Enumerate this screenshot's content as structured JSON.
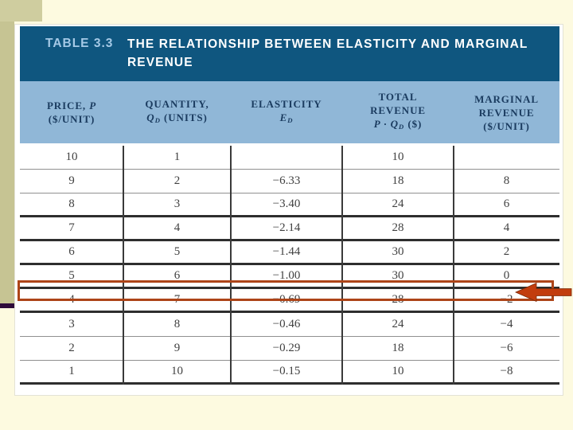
{
  "table": {
    "label": "TABLE 3.3",
    "title_line1": "THE RELATIONSHIP BETWEEN ELASTICITY AND MARGINAL",
    "title_line2": "REVENUE",
    "headers": {
      "price_main": "PRICE, ",
      "price_var": "P",
      "price_unit": "($/UNIT)",
      "qty_main": "QUANTITY,",
      "qty_var": "Q",
      "qty_sub": "D",
      "qty_unit": " (UNITS)",
      "elasticity_main": "ELASTICITY",
      "elasticity_var": "E",
      "elasticity_sub": "D",
      "tr_line1": "TOTAL",
      "tr_line2": "REVENUE",
      "tr_formula_pre": "P · Q",
      "tr_formula_sub": "D",
      "tr_formula_post": " ($)",
      "mr_line1": "MARGINAL",
      "mr_line2": "REVENUE",
      "mr_line3": "($/UNIT)"
    },
    "rows": [
      {
        "price": "10",
        "qty": "1",
        "elasticity": "",
        "tr": "10",
        "mr": "",
        "rule": "thin"
      },
      {
        "price": "9",
        "qty": "2",
        "elasticity": "−6.33",
        "tr": "18",
        "mr": "8",
        "rule": "thin"
      },
      {
        "price": "8",
        "qty": "3",
        "elasticity": "−3.40",
        "tr": "24",
        "mr": "6",
        "rule": "heavy"
      },
      {
        "price": "7",
        "qty": "4",
        "elasticity": "−2.14",
        "tr": "28",
        "mr": "4",
        "rule": "heavy"
      },
      {
        "price": "6",
        "qty": "5",
        "elasticity": "−1.44",
        "tr": "30",
        "mr": "2",
        "rule": "heavy"
      },
      {
        "price": "5",
        "qty": "6",
        "elasticity": "−1.00",
        "tr": "30",
        "mr": "0",
        "rule": "heavy"
      },
      {
        "price": "4",
        "qty": "7",
        "elasticity": "−0.69",
        "tr": "28",
        "mr": "−2",
        "rule": "heavy"
      },
      {
        "price": "3",
        "qty": "8",
        "elasticity": "−0.46",
        "tr": "24",
        "mr": "−4",
        "rule": "thin"
      },
      {
        "price": "2",
        "qty": "9",
        "elasticity": "−0.29",
        "tr": "18",
        "mr": "−6",
        "rule": "thin"
      },
      {
        "price": "1",
        "qty": "10",
        "elasticity": "−0.15",
        "tr": "10",
        "mr": "−8",
        "rule": "heavy"
      }
    ]
  },
  "annotation": {
    "box_color": "#AD4418",
    "arrow_color": "#C23D0E",
    "highlighted_rows": [
      "5",
      "4"
    ]
  },
  "colors": {
    "slide_background": "#FDFAE0",
    "accent_band": "#C6C493",
    "accent_corner": "#CFCD9F",
    "accent_rule": "#2E0B3A",
    "title_bar": "#0F567F",
    "title_label_text": "#A5C9E6",
    "header_band": "#90B7D7",
    "header_text": "#1B3C60",
    "data_text": "#414141"
  },
  "chart_data": {
    "type": "table",
    "title": "TABLE 3.3 THE RELATIONSHIP BETWEEN ELASTICITY AND MARGINAL REVENUE",
    "columns": [
      "Price, P ($/unit)",
      "Quantity, QD (units)",
      "Elasticity ED",
      "Total Revenue P·QD ($)",
      "Marginal Revenue ($/unit)"
    ],
    "rows": [
      [
        10,
        1,
        null,
        10,
        null
      ],
      [
        9,
        2,
        -6.33,
        18,
        8
      ],
      [
        8,
        3,
        -3.4,
        24,
        6
      ],
      [
        7,
        4,
        -2.14,
        28,
        4
      ],
      [
        6,
        5,
        -1.44,
        30,
        2
      ],
      [
        5,
        6,
        -1.0,
        30,
        0
      ],
      [
        4,
        7,
        -0.69,
        28,
        -2
      ],
      [
        3,
        8,
        -0.46,
        24,
        -4
      ],
      [
        2,
        9,
        -0.29,
        18,
        -6
      ],
      [
        1,
        10,
        -0.15,
        10,
        -8
      ]
    ]
  }
}
